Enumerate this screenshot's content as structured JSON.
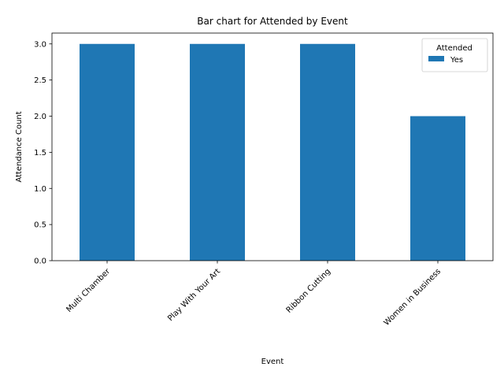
{
  "chart_data": {
    "type": "bar",
    "title": "Bar chart for Attended by Event",
    "xlabel": "Event",
    "ylabel": "Attendance Count",
    "categories": [
      "Multi Chamber",
      "Play With Your Art",
      "Ribbon Cutting",
      "Women in Business"
    ],
    "series": [
      {
        "name": "Yes",
        "values": [
          3,
          3,
          3,
          2
        ],
        "color": "#1f77b4"
      }
    ],
    "ylim": [
      0,
      3.15
    ],
    "yticks": [
      0.0,
      0.5,
      1.0,
      1.5,
      2.0,
      2.5,
      3.0
    ],
    "ytick_labels": [
      "0.0",
      "0.5",
      "1.0",
      "1.5",
      "2.0",
      "2.5",
      "3.0"
    ],
    "legend": {
      "title": "Attended",
      "placement": "top-right"
    },
    "grid": false
  }
}
